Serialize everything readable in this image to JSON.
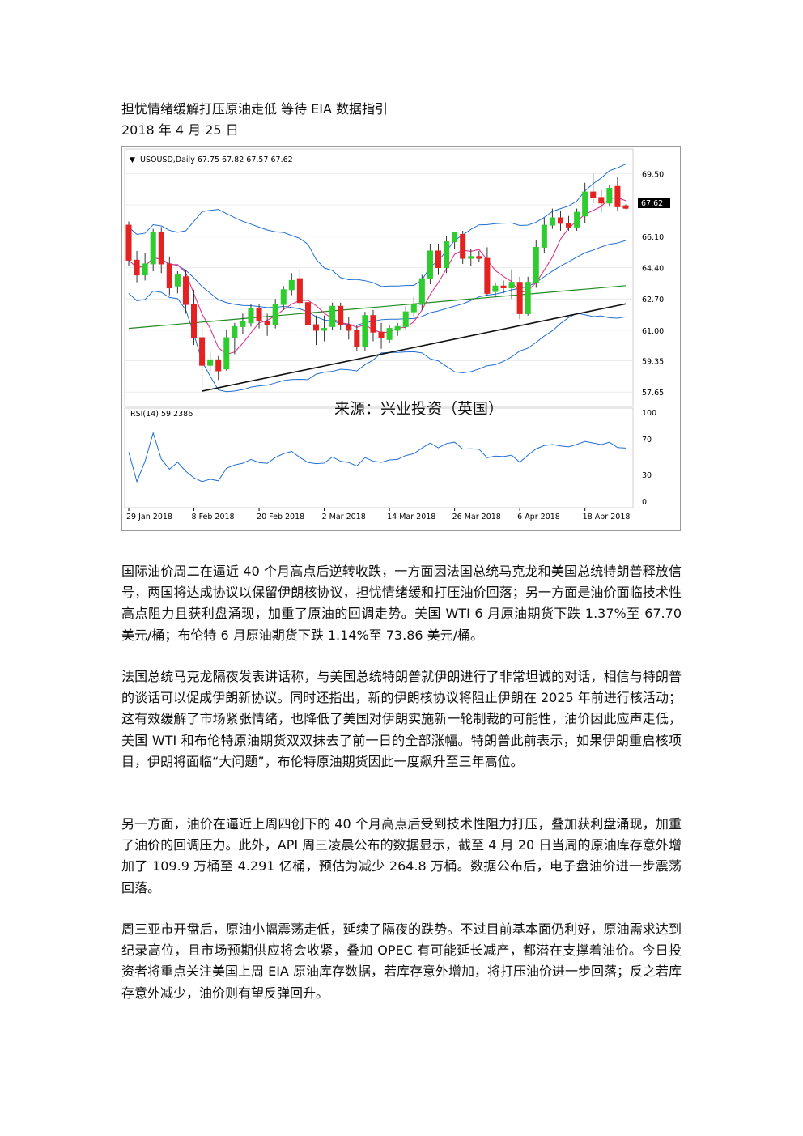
{
  "doc": {
    "title": "担忧情绪缓解打压原油走低  等待 EIA 数据指引",
    "date": "2018 年 4 月 25 日",
    "paragraphs": [
      "国际油价周二在逼近 40 个月高点后逆转收跌，一方面因法国总统马克龙和美国总统特朗普释放信号，两国将达成协议以保留伊朗核协议，担忧情绪缓和打压油价回落；另一方面是油价面临技术性高点阻力且获利盘涌现，加重了原油的回调走势。美国 WTI 6 月原油期货下跌 1.37%至 67.70 美元/桶；布伦特 6 月原油期货下跌 1.14%至 73.86 美元/桶。",
      "法国总统马克龙隔夜发表讲话称，与美国总统特朗普就伊朗进行了非常坦诚的对话，相信与特朗普的谈话可以促成伊朗新协议。同时还指出，新的伊朗核协议将阻止伊朗在 2025 年前进行核活动；这有效缓解了市场紧张情绪，也降低了美国对伊朗实施新一轮制裁的可能性，油价因此应声走低，美国 WTI 和布伦特原油期货双双抹去了前一日的全部涨幅。特朗普此前表示，如果伊朗重启核项目，伊朗将面临“大问题”，布伦特原油期货因此一度飙升至三年高位。",
      "另一方面，油价在逼近上周四创下的 40 个月高点后受到技术性阻力打压，叠加获利盘涌现，加重了油价的回调压力。此外，API 周三凌晨公布的数据显示，截至 4 月 20 日当周的原油库存意外增加了 109.9 万桶至 4.291 亿桶，预估为减少 264.8 万桶。数据公布后，电子盘油价进一步震荡回落。",
      "周三亚市开盘后，原油小幅震荡走低，延续了隔夜的跌势。不过目前基本面仍利好，原油需求达到纪录高位，且市场预期供应将会收紧，叠加 OPEC 有可能延长减产，都潜在支撑着油价。今日投资者将重点关注美国上周 EIA 原油库存数据，若库存意外增加，将打压油价进一步回落；反之若库存意外减少，油价则有望反弹回升。"
    ]
  },
  "chart_data": {
    "type": "candlestick",
    "header": "USOUSD,Daily  67.75 67.82 67.57 67.62",
    "current_price_label": "67.62",
    "source_watermark": "来源：兴业投资（英国）",
    "price_ticks": [
      "69.50",
      "67.80",
      "66.10",
      "64.40",
      "62.70",
      "61.00",
      "59.35",
      "57.65"
    ],
    "price_tick_values": [
      69.5,
      67.8,
      66.1,
      64.4,
      62.7,
      61.0,
      59.35,
      57.65
    ],
    "ylim": [
      57.0,
      70.7
    ],
    "rsi_label": "RSI(14) 59.2386",
    "rsi_ticks": [
      "100",
      "70",
      "30",
      "0"
    ],
    "rsi_tick_values": [
      100,
      70,
      30,
      0
    ],
    "date_ticks": [
      "29 Jan 2018",
      "8 Feb 2018",
      "20 Feb 2018",
      "2 Mar 2018",
      "14 Mar 2018",
      "26 Mar 2018",
      "6 Apr 2018",
      "18 Apr 2018"
    ],
    "date_tick_index": [
      0,
      8,
      16,
      24,
      32,
      40,
      48,
      56
    ],
    "candles": [
      {
        "o": 66.7,
        "h": 66.9,
        "l": 64.5,
        "c": 64.8
      },
      {
        "o": 64.8,
        "h": 65.3,
        "l": 63.6,
        "c": 64.0
      },
      {
        "o": 64.0,
        "h": 65.2,
        "l": 63.7,
        "c": 64.6
      },
      {
        "o": 64.6,
        "h": 66.5,
        "l": 64.2,
        "c": 66.3
      },
      {
        "o": 66.3,
        "h": 66.6,
        "l": 64.1,
        "c": 64.6
      },
      {
        "o": 64.6,
        "h": 65.0,
        "l": 62.9,
        "c": 63.3
      },
      {
        "o": 63.4,
        "h": 64.2,
        "l": 63.0,
        "c": 64.0
      },
      {
        "o": 63.9,
        "h": 64.3,
        "l": 61.9,
        "c": 62.4
      },
      {
        "o": 62.4,
        "h": 63.2,
        "l": 60.2,
        "c": 60.6
      },
      {
        "o": 60.6,
        "h": 61.2,
        "l": 57.9,
        "c": 59.1
      },
      {
        "o": 59.1,
        "h": 59.9,
        "l": 58.7,
        "c": 59.4
      },
      {
        "o": 59.4,
        "h": 59.6,
        "l": 58.3,
        "c": 58.8
      },
      {
        "o": 58.9,
        "h": 61.0,
        "l": 58.8,
        "c": 60.6
      },
      {
        "o": 60.6,
        "h": 61.4,
        "l": 59.7,
        "c": 61.2
      },
      {
        "o": 61.2,
        "h": 61.9,
        "l": 60.8,
        "c": 61.5
      },
      {
        "o": 61.4,
        "h": 62.4,
        "l": 61.2,
        "c": 62.2
      },
      {
        "o": 62.2,
        "h": 62.4,
        "l": 61.1,
        "c": 61.5
      },
      {
        "o": 61.5,
        "h": 61.9,
        "l": 60.7,
        "c": 61.3
      },
      {
        "o": 61.3,
        "h": 62.7,
        "l": 61.1,
        "c": 62.4
      },
      {
        "o": 62.4,
        "h": 63.4,
        "l": 62.1,
        "c": 63.2
      },
      {
        "o": 63.2,
        "h": 64.1,
        "l": 62.9,
        "c": 63.7
      },
      {
        "o": 63.8,
        "h": 64.3,
        "l": 62.3,
        "c": 62.5
      },
      {
        "o": 62.5,
        "h": 62.7,
        "l": 60.9,
        "c": 61.3
      },
      {
        "o": 61.3,
        "h": 61.8,
        "l": 60.2,
        "c": 61.0
      },
      {
        "o": 61.0,
        "h": 61.8,
        "l": 60.4,
        "c": 61.1
      },
      {
        "o": 61.2,
        "h": 62.5,
        "l": 61.0,
        "c": 62.3
      },
      {
        "o": 62.3,
        "h": 62.5,
        "l": 61.0,
        "c": 61.3
      },
      {
        "o": 61.3,
        "h": 61.7,
        "l": 60.5,
        "c": 61.0
      },
      {
        "o": 61.0,
        "h": 61.3,
        "l": 59.9,
        "c": 60.1
      },
      {
        "o": 60.1,
        "h": 62.0,
        "l": 59.9,
        "c": 61.8
      },
      {
        "o": 61.8,
        "h": 62.1,
        "l": 60.4,
        "c": 60.9
      },
      {
        "o": 60.9,
        "h": 61.4,
        "l": 60.0,
        "c": 60.6
      },
      {
        "o": 60.5,
        "h": 61.3,
        "l": 60.3,
        "c": 61.1
      },
      {
        "o": 61.0,
        "h": 61.4,
        "l": 60.7,
        "c": 61.2
      },
      {
        "o": 61.2,
        "h": 62.3,
        "l": 61.0,
        "c": 62.0
      },
      {
        "o": 62.0,
        "h": 62.8,
        "l": 61.7,
        "c": 62.4
      },
      {
        "o": 62.4,
        "h": 64.0,
        "l": 62.1,
        "c": 63.8
      },
      {
        "o": 63.8,
        "h": 65.7,
        "l": 63.5,
        "c": 65.3
      },
      {
        "o": 65.3,
        "h": 65.7,
        "l": 64.0,
        "c": 64.4
      },
      {
        "o": 64.4,
        "h": 66.1,
        "l": 64.1,
        "c": 65.8
      },
      {
        "o": 65.8,
        "h": 66.3,
        "l": 65.4,
        "c": 66.3
      },
      {
        "o": 66.2,
        "h": 66.4,
        "l": 64.6,
        "c": 64.9
      },
      {
        "o": 64.9,
        "h": 65.4,
        "l": 64.5,
        "c": 65.0
      },
      {
        "o": 65.0,
        "h": 65.3,
        "l": 64.7,
        "c": 64.9
      },
      {
        "o": 64.9,
        "h": 65.5,
        "l": 62.9,
        "c": 63.0
      },
      {
        "o": 63.1,
        "h": 63.6,
        "l": 62.8,
        "c": 63.4
      },
      {
        "o": 63.4,
        "h": 63.7,
        "l": 63.0,
        "c": 63.3
      },
      {
        "o": 63.3,
        "h": 64.3,
        "l": 62.7,
        "c": 63.6
      },
      {
        "o": 63.6,
        "h": 63.9,
        "l": 61.6,
        "c": 61.9
      },
      {
        "o": 61.9,
        "h": 63.9,
        "l": 61.8,
        "c": 63.6
      },
      {
        "o": 63.6,
        "h": 65.9,
        "l": 63.3,
        "c": 65.5
      },
      {
        "o": 65.5,
        "h": 67.1,
        "l": 65.2,
        "c": 66.7
      },
      {
        "o": 66.7,
        "h": 67.6,
        "l": 66.5,
        "c": 67.1
      },
      {
        "o": 67.1,
        "h": 67.5,
        "l": 66.4,
        "c": 66.8
      },
      {
        "o": 66.8,
        "h": 67.2,
        "l": 66.4,
        "c": 66.6
      },
      {
        "o": 66.6,
        "h": 67.6,
        "l": 66.4,
        "c": 67.4
      },
      {
        "o": 67.2,
        "h": 69.0,
        "l": 66.8,
        "c": 68.5
      },
      {
        "o": 68.5,
        "h": 69.5,
        "l": 67.9,
        "c": 68.2
      },
      {
        "o": 68.2,
        "h": 68.6,
        "l": 67.4,
        "c": 67.9
      },
      {
        "o": 67.9,
        "h": 68.9,
        "l": 67.7,
        "c": 68.7
      },
      {
        "o": 68.8,
        "h": 69.3,
        "l": 67.5,
        "c": 67.7
      },
      {
        "o": 67.75,
        "h": 67.82,
        "l": 67.57,
        "c": 67.62
      }
    ],
    "colors": {
      "up": "#2ecc2e",
      "down": "#e32222",
      "band": "#1f6fd6",
      "ma_fast": "#e0358a",
      "ma_mid": "#228b22",
      "ma_slow": "#111111"
    }
  }
}
